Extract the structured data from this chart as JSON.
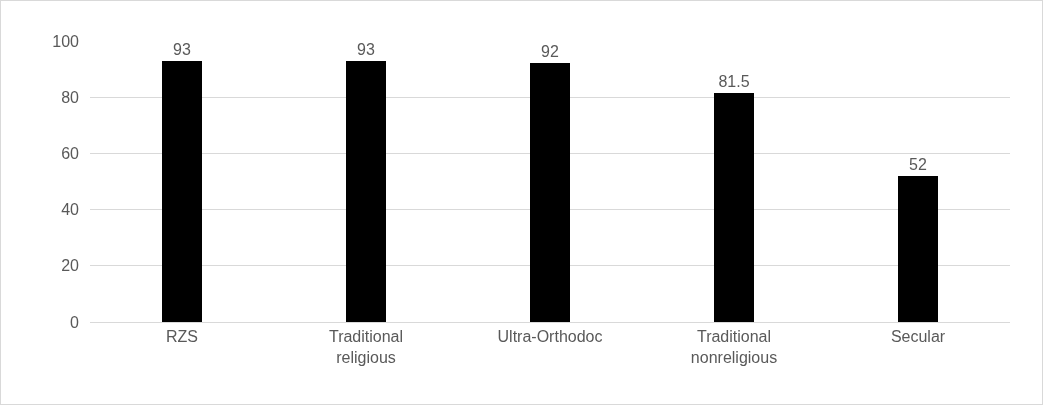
{
  "chart_data": {
    "type": "bar",
    "categories": [
      "RZS",
      "Traditional religious",
      "Ultra-Orthodoc",
      "Traditional nonreligious",
      "Secular"
    ],
    "values": [
      93,
      93,
      92,
      81.5,
      52
    ],
    "color": "#000000",
    "ylim": [
      0,
      100
    ],
    "yticks": [
      0,
      20,
      40,
      60,
      80,
      100
    ],
    "grid": "y",
    "data_labels": true
  }
}
